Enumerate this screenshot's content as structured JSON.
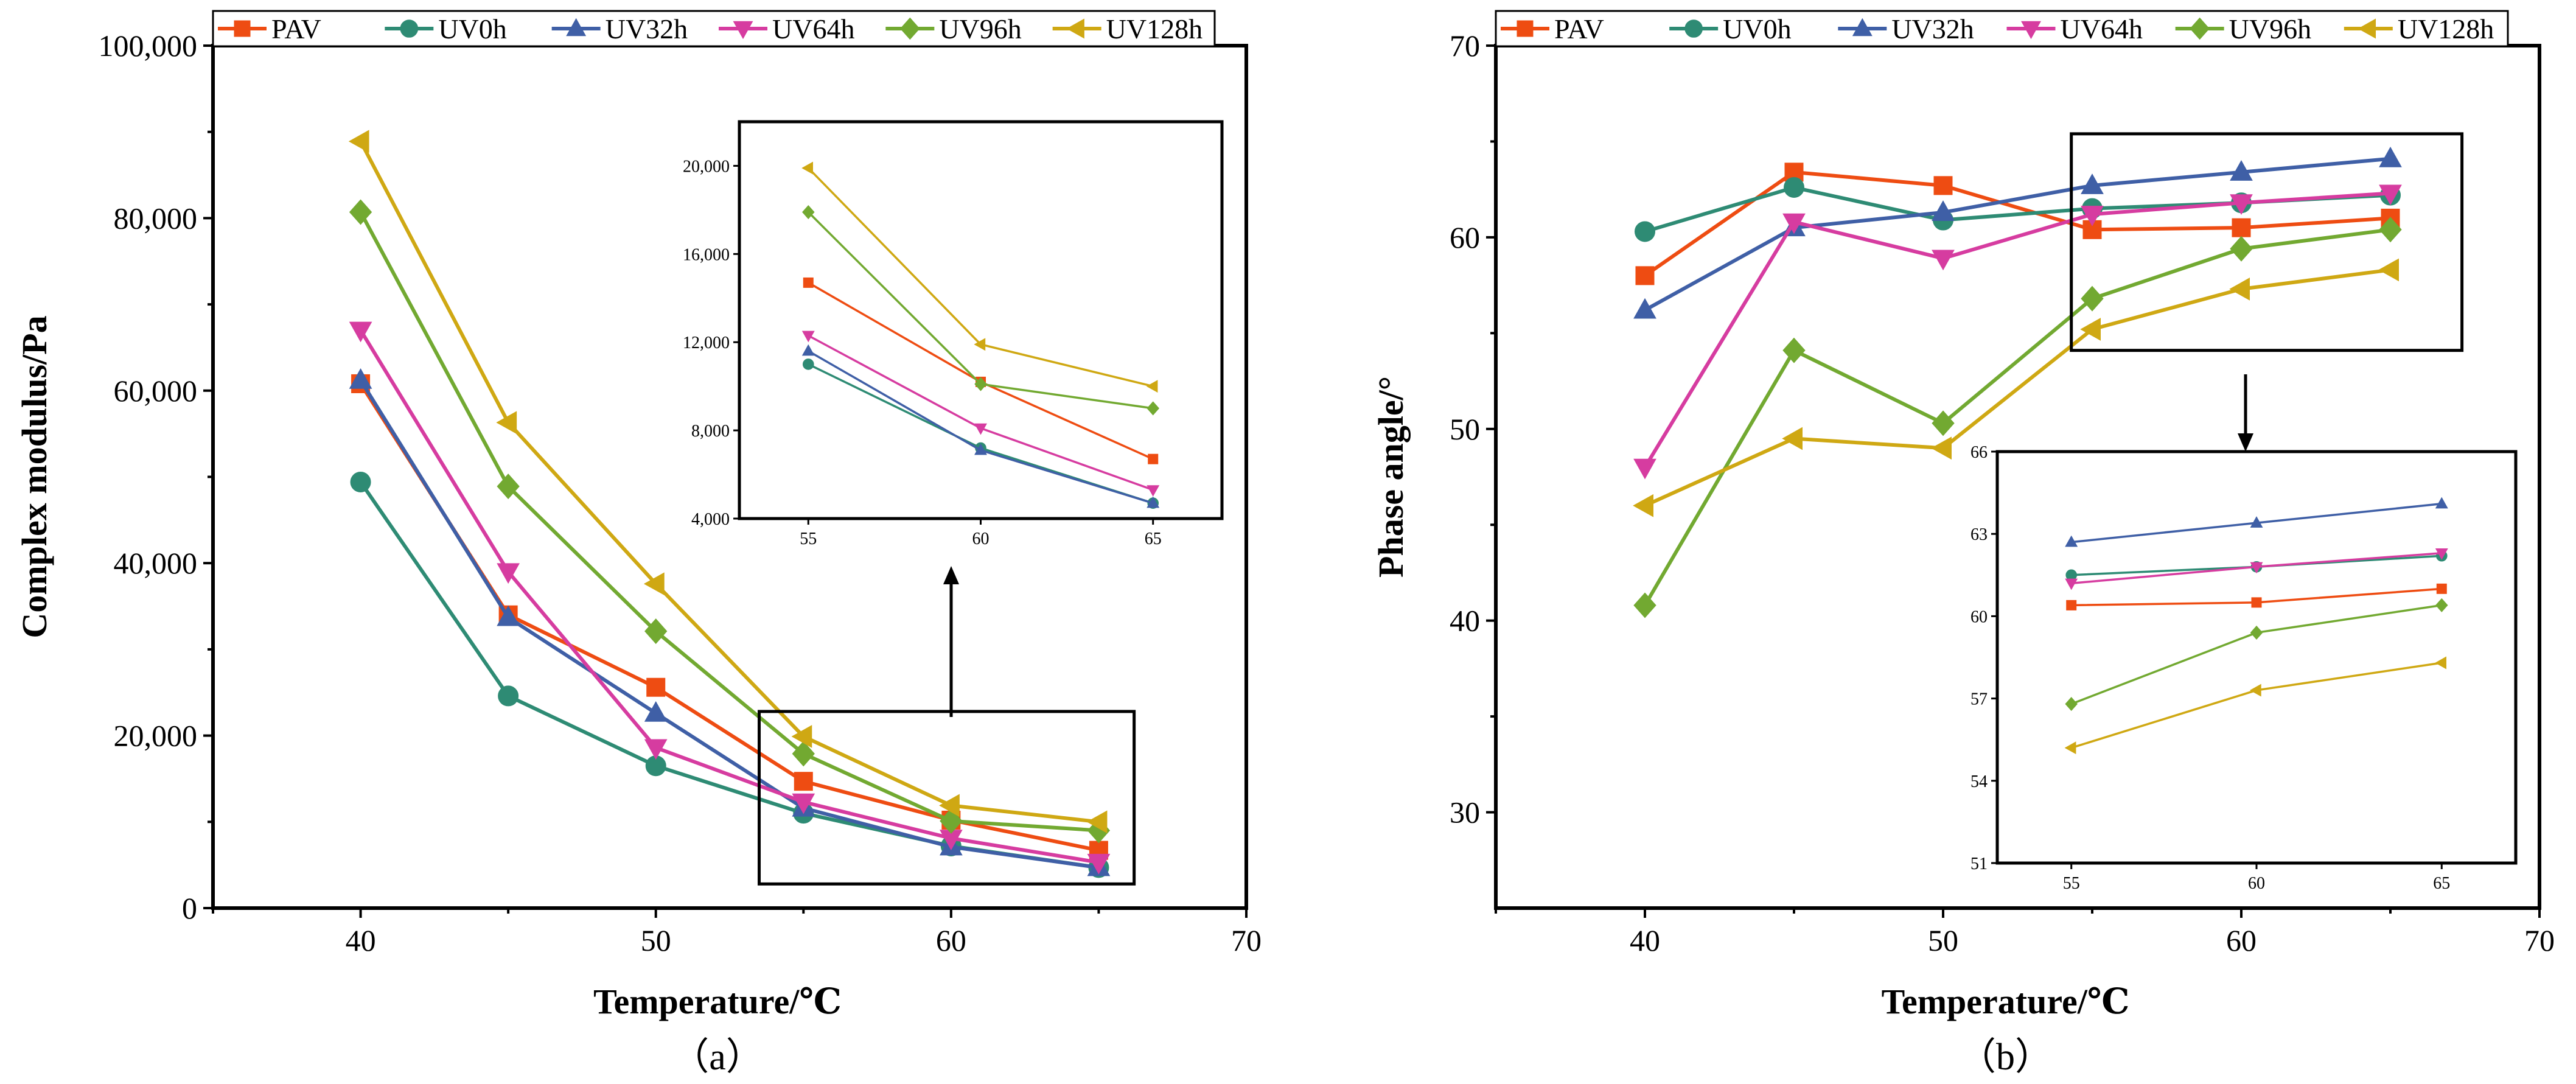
{
  "colors": {
    "PAV": "#ee4c12",
    "UV0h": "#2e8b74",
    "UV32h": "#3f5fa6",
    "UV64h": "#d63ca0",
    "UV96h": "#72a931",
    "UV128h": "#cfa813"
  },
  "markers": {
    "PAV": "square",
    "UV0h": "circle",
    "UV32h": "triangle-up",
    "UV64h": "triangle-down",
    "UV96h": "diamond",
    "UV128h": "triangle-left"
  },
  "chart_data": [
    {
      "type": "line",
      "panel": "(a)",
      "caption": "（a）",
      "xlabel": "Temperature/℃",
      "ylabel": "Complex modulus/Pa",
      "xlim": [
        35,
        70
      ],
      "ylim": [
        0,
        100000
      ],
      "xticks": [
        40,
        50,
        60,
        70
      ],
      "yticks": [
        0,
        20000,
        40000,
        60000,
        80000,
        100000
      ],
      "xtick_labels": [
        "40",
        "50",
        "60",
        "70"
      ],
      "ytick_labels": [
        "0",
        "20,000",
        "40,000",
        "60,000",
        "80,000",
        "100,000"
      ],
      "legend_placement": "top",
      "x": [
        40,
        45,
        50,
        55,
        60,
        65
      ],
      "series": [
        {
          "name": "PAV",
          "values": [
            60800,
            34000,
            25600,
            14700,
            10200,
            6700
          ]
        },
        {
          "name": "UV0h",
          "values": [
            49400,
            24600,
            16500,
            11000,
            7200,
            4700
          ]
        },
        {
          "name": "UV32h",
          "values": [
            61200,
            33700,
            22600,
            11600,
            7100,
            4700
          ]
        },
        {
          "name": "UV64h",
          "values": [
            67000,
            39000,
            18600,
            12300,
            8100,
            5300
          ]
        },
        {
          "name": "UV96h",
          "values": [
            80700,
            48900,
            32100,
            17900,
            10100,
            9000
          ]
        },
        {
          "name": "UV128h",
          "values": [
            88900,
            56300,
            37600,
            19900,
            11900,
            10000
          ]
        }
      ],
      "inset": {
        "xlim": [
          53,
          67
        ],
        "ylim": [
          4000,
          22000
        ],
        "xticks": [
          55,
          60,
          65
        ],
        "yticks": [
          4000,
          8000,
          12000,
          16000,
          20000
        ],
        "xtick_labels": [
          "55",
          "60",
          "65"
        ],
        "ytick_labels": [
          "4,000",
          "8,000",
          "12,000",
          "16,000",
          "20,000"
        ]
      }
    },
    {
      "type": "line",
      "panel": "(b)",
      "caption": "（b）",
      "xlabel": "Temperature/℃",
      "ylabel": "Phase angle/°",
      "xlim": [
        35,
        70
      ],
      "ylim": [
        25,
        70
      ],
      "xticks": [
        40,
        50,
        60,
        70
      ],
      "yticks": [
        30,
        40,
        50,
        60,
        70
      ],
      "xtick_labels": [
        "40",
        "50",
        "60",
        "70"
      ],
      "ytick_labels": [
        "30",
        "40",
        "50",
        "60",
        "70"
      ],
      "legend_placement": "top",
      "x": [
        40,
        45,
        50,
        55,
        60,
        65
      ],
      "series": [
        {
          "name": "PAV",
          "values": [
            58.0,
            63.4,
            62.7,
            60.4,
            60.5,
            61.0
          ]
        },
        {
          "name": "UV0h",
          "values": [
            60.3,
            62.6,
            60.9,
            61.5,
            61.8,
            62.2
          ]
        },
        {
          "name": "UV32h",
          "values": [
            56.2,
            60.5,
            61.3,
            62.7,
            63.4,
            64.1
          ]
        },
        {
          "name": "UV64h",
          "values": [
            48.0,
            60.8,
            58.9,
            61.2,
            61.8,
            62.3
          ]
        },
        {
          "name": "UV96h",
          "values": [
            40.8,
            54.1,
            50.3,
            56.8,
            59.4,
            60.4
          ]
        },
        {
          "name": "UV128h",
          "values": [
            46.0,
            49.5,
            49.0,
            55.2,
            57.3,
            58.3
          ]
        }
      ],
      "zoom_x": [
        55,
        60,
        65
      ],
      "inset": {
        "xlim": [
          53,
          67
        ],
        "ylim": [
          51,
          66
        ],
        "xticks": [
          55,
          60,
          65
        ],
        "yticks": [
          51,
          54,
          57,
          60,
          63,
          66
        ],
        "xtick_labels": [
          "55",
          "60",
          "65"
        ],
        "ytick_labels": [
          "51",
          "54",
          "57",
          "60",
          "63",
          "66"
        ]
      }
    }
  ]
}
